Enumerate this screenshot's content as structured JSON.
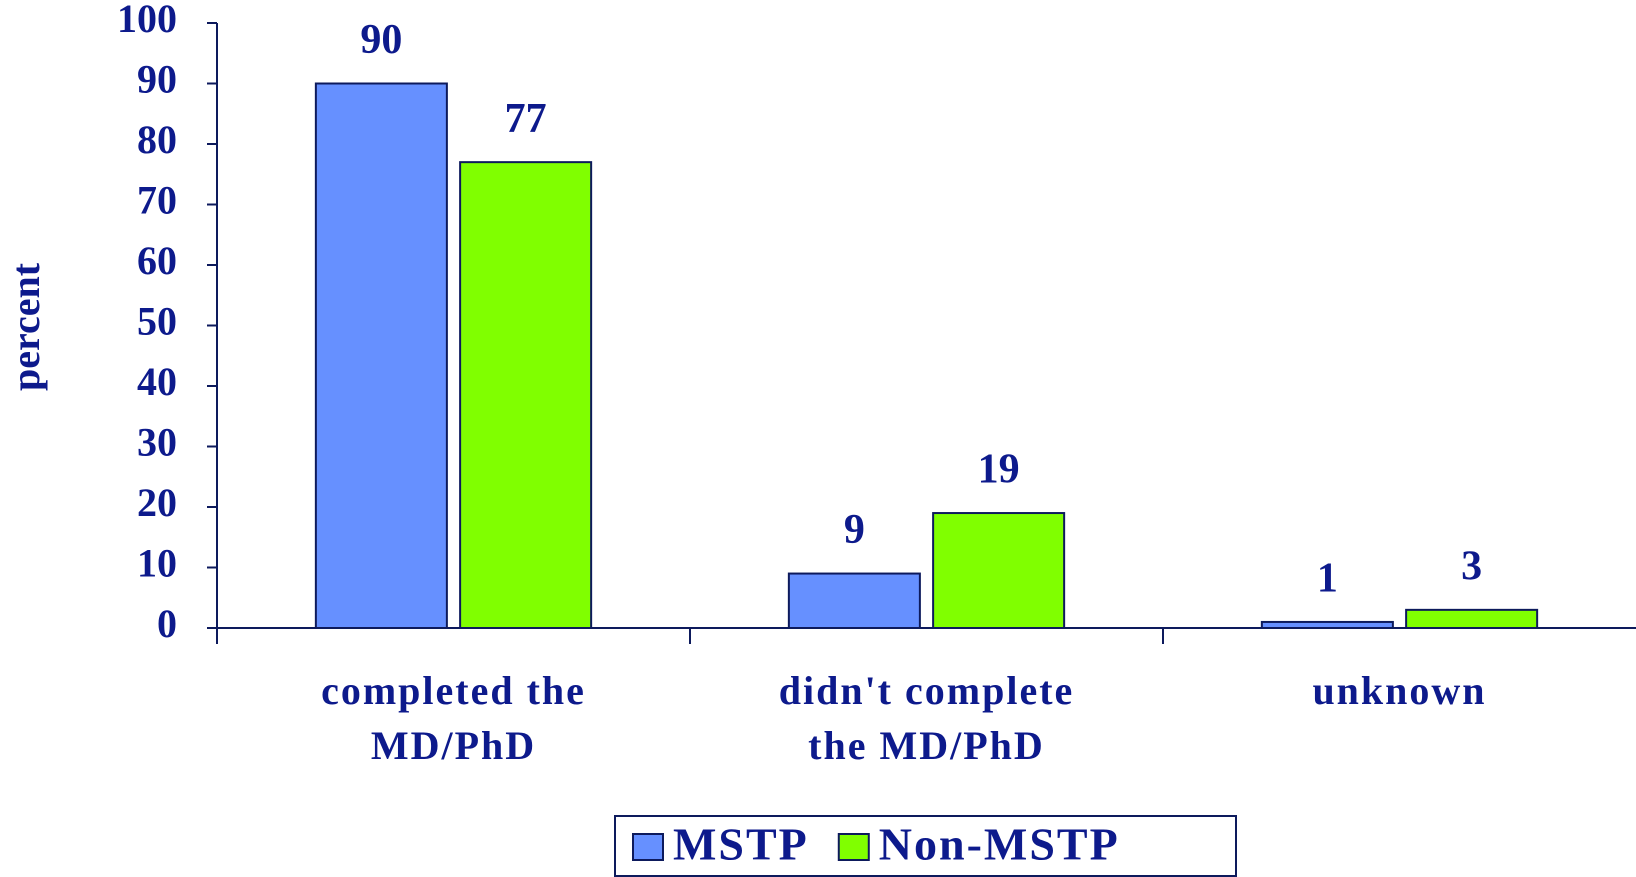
{
  "chart_data": {
    "type": "bar",
    "y_label": "percent",
    "categories": [
      "completed the MD/PhD",
      "didn't complete the MD/PhD",
      "unknown"
    ],
    "series": [
      {
        "name": "MSTP",
        "color": "#6690ff",
        "values": [
          90,
          9,
          1
        ]
      },
      {
        "name": "Non-MSTP",
        "color": "#80ff00",
        "values": [
          77,
          19,
          3
        ]
      }
    ],
    "ylim": [
      0,
      100
    ],
    "yticks": [
      0,
      10,
      20,
      30,
      40,
      50,
      60,
      70,
      80,
      90,
      100
    ],
    "grid": false,
    "legend": "bottom"
  }
}
